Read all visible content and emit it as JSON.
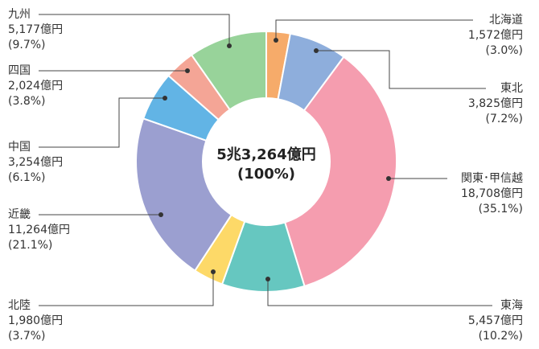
{
  "chart_data": {
    "type": "donut",
    "center_label": [
      "5兆3,264億円",
      "(100%)"
    ],
    "categories": [
      "北海道",
      "東北",
      "関東･甲信越",
      "東海",
      "北陸",
      "近畿",
      "中国",
      "四国",
      "九州"
    ],
    "values": [
      1572,
      3825,
      18708,
      5457,
      1980,
      11264,
      3254,
      2024,
      5177
    ],
    "value_labels": [
      "1,572億円",
      "3,825億円",
      "18,708億円",
      "5,457億円",
      "1,980億円",
      "11,264億円",
      "3,254億円",
      "2,024億円",
      "5,177億円"
    ],
    "shares": [
      3.0,
      7.2,
      35.1,
      10.2,
      3.7,
      21.1,
      6.1,
      3.8,
      9.7
    ],
    "share_labels": [
      "(3.0%)",
      "(7.2%)",
      "(35.1%)",
      "(10.2%)",
      "(3.7%)",
      "(21.1%)",
      "(6.1%)",
      "(3.8%)",
      "(9.7%)"
    ],
    "colors": [
      "#f6ab6a",
      "#8eaedc",
      "#f59daf",
      "#66c7c0",
      "#fdd968",
      "#9b9fd0",
      "#62b4e5",
      "#f4a596",
      "#98d39a"
    ]
  }
}
